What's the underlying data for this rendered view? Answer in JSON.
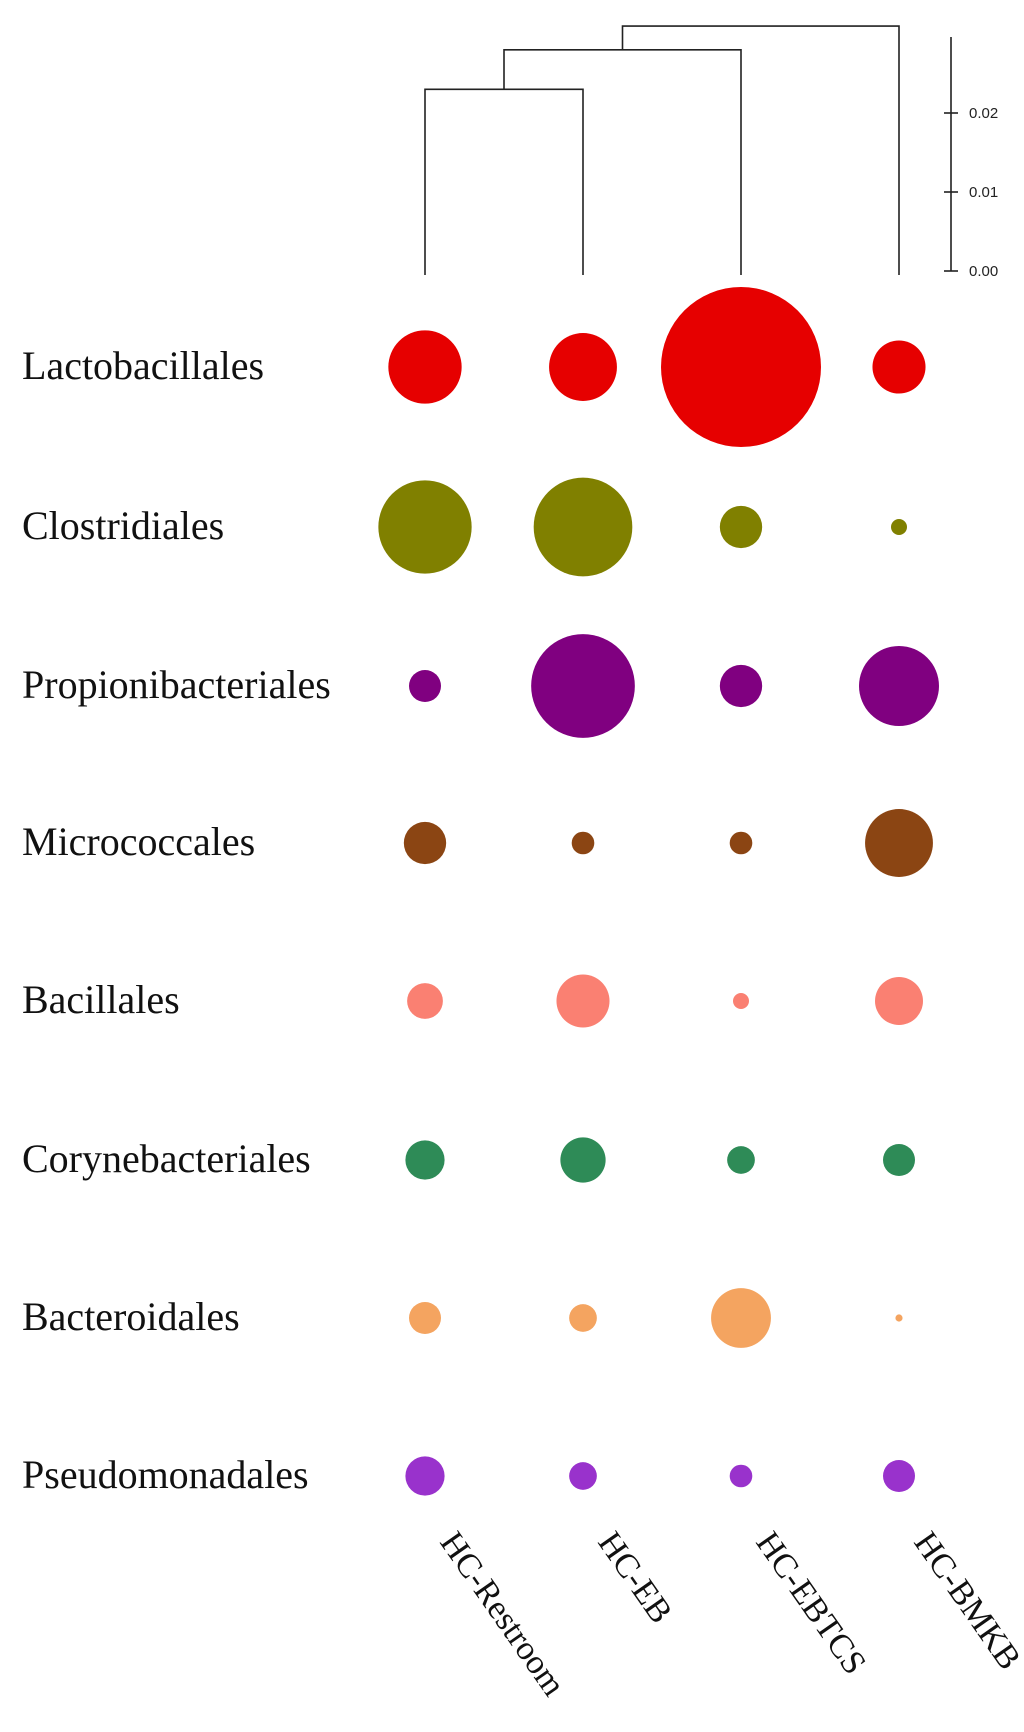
{
  "chart_data": {
    "type": "bubble",
    "rows": [
      "Lactobacillales",
      "Clostridiales",
      "Propionibacteriales",
      "Micrococcales",
      "Bacillales",
      "Corynebacteriales",
      "Bacteroidales",
      "Pseudomonadales"
    ],
    "columns": [
      "HC-Restroom",
      "HC-EB",
      "HC-EBTCS",
      "HC-BMKB"
    ],
    "row_colors": [
      "#E60000",
      "#808000",
      "#800080",
      "#8B4513",
      "#FA8072",
      "#2E8B57",
      "#F4A460",
      "#9932CC"
    ],
    "values": [
      [
        0.21,
        0.18,
        1.0,
        0.11
      ],
      [
        0.34,
        0.38,
        0.07,
        0.01
      ],
      [
        0.04,
        0.42,
        0.07,
        0.25
      ],
      [
        0.07,
        0.02,
        0.02,
        0.18
      ],
      [
        0.05,
        0.11,
        0.01,
        0.09
      ],
      [
        0.06,
        0.08,
        0.03,
        0.04
      ],
      [
        0.04,
        0.03,
        0.14,
        0.002
      ],
      [
        0.06,
        0.03,
        0.02,
        0.04
      ]
    ],
    "dendrogram": {
      "leaves": [
        "HC-Restroom",
        "HC-EB",
        "HC-EBTCS",
        "HC-BMKB"
      ],
      "merges": [
        {
          "left": "HC-Restroom",
          "right": "HC-EB",
          "height": 0.023
        },
        {
          "left": "HC-Restroom+HC-EB",
          "right": "HC-EBTCS",
          "height": 0.028
        },
        {
          "left": "HC-Restroom+HC-EB+HC-EBTCS",
          "right": "HC-BMKB",
          "height": 0.031
        }
      ]
    },
    "scale": {
      "ticks": [
        "0.00",
        "0.01",
        "0.02"
      ],
      "range": [
        0,
        0.03
      ]
    }
  }
}
